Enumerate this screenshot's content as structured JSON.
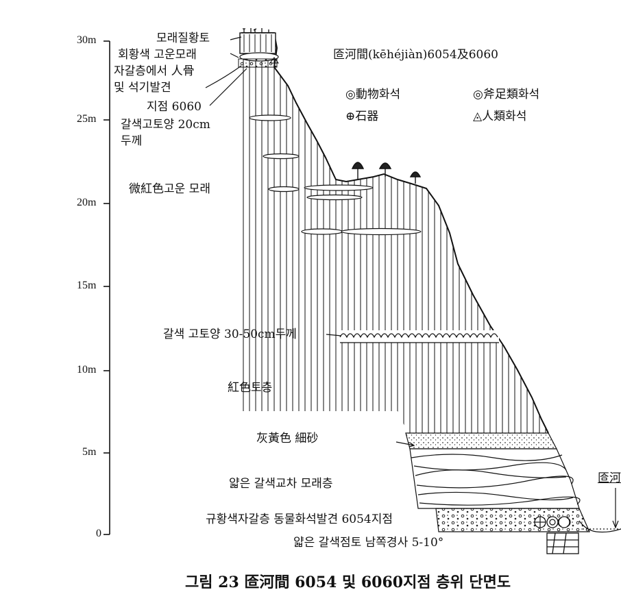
{
  "title": "匼河間(kēhéjiàn)6054及6060",
  "caption": "그림 23  匼河間 6054 및 6060지점 층위 단면도",
  "scale_ticks": [
    "30m",
    "25m",
    "20m",
    "15m",
    "10m",
    "5m",
    "0"
  ],
  "legend": {
    "animal_fossil": "◎動物화석",
    "bivalve_fossil": "◎斧足類화석",
    "stone_tool": "⊕石器",
    "human_fossil": "◬人類화석"
  },
  "labels": {
    "sandy_loess": "모래질황토",
    "grey_yellow_sand": "회황색 고운모래",
    "gravel_find_line1": "자갈층에서 人骨",
    "gravel_find_line2": "및 석기발견",
    "site_6060": "지점 6060",
    "brown_soil_20_line1": "갈색고토양 20cm",
    "brown_soil_20_line2": "두께",
    "reddish_sand": "微紅色고운 모래",
    "brown_soil_30_50": "갈색 고토양 30-50cm두께",
    "red_soil": "紅色토층",
    "grey_yellow_fine_sand": "灰黃色 細砂",
    "thin_brown_cross": "얇은 갈색교차 모래층",
    "gravel_6054": "규황색자갈층 동물화석발견 6054지점",
    "thin_clay": "얇은 갈색점토 남쪽경사 5-10°",
    "river_label": "匼河"
  }
}
